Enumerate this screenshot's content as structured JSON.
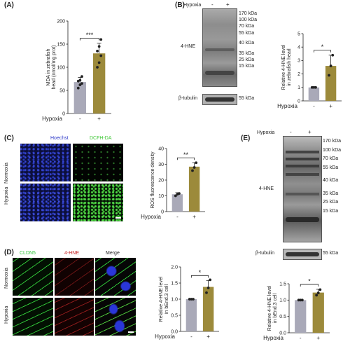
{
  "colors": {
    "gray_bar": "#a9a9b8",
    "olive_bar": "#9c8a3b",
    "hoechst": "#2a36c8",
    "dcfh": "#43c93a",
    "cldn5": "#2fc43a",
    "hne": "#c82a2a"
  },
  "panelA": {
    "label": "(A)",
    "ylabel": "MDA in zebrafish head (nmol/mg prot)",
    "yticks": [
      "0",
      "50",
      "100",
      "150",
      "200"
    ],
    "sig": "***",
    "row_label": "Hypoxia",
    "conds": [
      "-",
      "+"
    ]
  },
  "panelB": {
    "label": "(B)",
    "header": "Hypoxia",
    "conds": [
      "-",
      "+"
    ],
    "band_main": "4-HNE",
    "band_ctrl": "β-tubulin",
    "mw": [
      "170 kDa",
      "100 kDa",
      "70 kDa",
      "55 kDa",
      "40 kDa",
      "35 kDa",
      "25 kDa",
      "15 kDa"
    ],
    "ctrl_mw": "55 kDa",
    "ylabel": "Relative 4-HNE level in zebrafish head",
    "yticks": [
      "0",
      "1",
      "2",
      "3",
      "4",
      "5"
    ],
    "sig": "*",
    "row_label": "Hypoxia"
  },
  "panelC": {
    "label": "(C)",
    "col1": "Hoechst",
    "col2": "DCFH-DA",
    "row1": "Normoxia",
    "row2": "Hypoxia",
    "ylabel": "ROS fluorescence density",
    "yticks": [
      "0",
      "10",
      "20",
      "30",
      "40"
    ],
    "sig": "**",
    "row_label": "Hypoxia",
    "conds": [
      "-",
      "+"
    ]
  },
  "panelD": {
    "label": "(D)",
    "col1": "CLDN5",
    "col2": "4-HNE",
    "col3": "Merge",
    "row1": "Normoxia",
    "row2": "Hypoxia",
    "ylabel": "Relative 4-HNE level in bEnd.3 cell",
    "yticks": [
      "0.0",
      "0.5",
      "1.0",
      "1.5",
      "2.0"
    ],
    "sig": "*",
    "row_label": "Hypoxia",
    "conds": [
      "-",
      "+"
    ]
  },
  "panelE": {
    "label": "(E)",
    "header": "Hypoxia",
    "conds": [
      "-",
      "+"
    ],
    "band_main": "4-HNE",
    "band_ctrl": "β-tubulin",
    "mw": [
      "170 kDa",
      "100 kDa",
      "70 kDa",
      "55 kDa",
      "40 kDa",
      "35 kDa",
      "25 kDa",
      "15 kDa"
    ],
    "ctrl_mw": "55 kDa",
    "ylabel": "Relative 4-HNE level in bEnd.3 cell",
    "yticks": [
      "0.0",
      "0.5",
      "1.0",
      "1.5"
    ],
    "sig": "*",
    "row_label": "Hypoxia"
  },
  "chart_data": [
    {
      "id": "A",
      "type": "bar",
      "categories": [
        "-",
        "+"
      ],
      "values": [
        68,
        130
      ],
      "errors": [
        10,
        22
      ],
      "points": [
        [
          55,
          62,
          65,
          70,
          72,
          80
        ],
        [
          100,
          110,
          125,
          135,
          145,
          160
        ]
      ],
      "ylim": [
        0,
        200
      ],
      "ylabel": "MDA in zebrafish head (nmol/mg prot)"
    },
    {
      "id": "B",
      "type": "bar",
      "categories": [
        "-",
        "+"
      ],
      "values": [
        1.0,
        2.6
      ],
      "errors": [
        0.05,
        0.8
      ],
      "points": [
        [
          1,
          1,
          1
        ],
        [
          1.9,
          2.6,
          3.4
        ]
      ],
      "ylim": [
        0,
        5
      ],
      "ylabel": "Relative 4-HNE level in zebrafish head"
    },
    {
      "id": "C",
      "type": "bar",
      "categories": [
        "-",
        "+"
      ],
      "values": [
        11,
        28.5
      ],
      "errors": [
        1,
        2.5
      ],
      "points": [
        [
          10,
          11,
          11.5
        ],
        [
          26,
          28,
          31
        ]
      ],
      "ylim": [
        0,
        40
      ],
      "ylabel": "ROS fluorescence density"
    },
    {
      "id": "D",
      "type": "bar",
      "categories": [
        "-",
        "+"
      ],
      "values": [
        1.0,
        1.38
      ],
      "errors": [
        0.02,
        0.2
      ],
      "points": [
        [
          1,
          1,
          1
        ],
        [
          1.2,
          1.35,
          1.6
        ]
      ],
      "ylim": [
        0,
        2
      ],
      "ylabel": "Relative 4-HNE level in bEnd.3 cell"
    },
    {
      "id": "E",
      "type": "bar",
      "categories": [
        "-",
        "+"
      ],
      "values": [
        1.0,
        1.23
      ],
      "errors": [
        0.02,
        0.1
      ],
      "points": [
        [
          1,
          1,
          1
        ],
        [
          1.15,
          1.22,
          1.32
        ]
      ],
      "ylim": [
        0,
        1.5
      ],
      "ylabel": "Relative 4-HNE level in bEnd.3 cell"
    }
  ]
}
